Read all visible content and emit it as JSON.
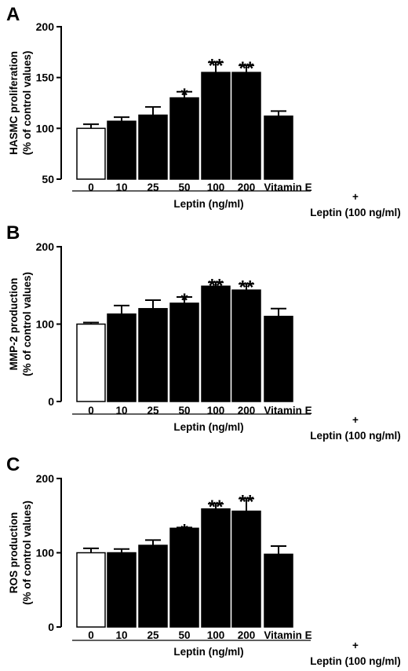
{
  "chart_data": [
    {
      "panel": "A",
      "type": "bar",
      "ylabel_line1": "HASMC proliferation",
      "ylabel_line2": "(% of control values)",
      "ylim": [
        50,
        200
      ],
      "yticks": [
        50,
        100,
        150,
        200
      ],
      "categories": [
        "0",
        "10",
        "25",
        "50",
        "100",
        "200",
        "Vitamin E"
      ],
      "values": [
        100,
        107,
        113,
        130,
        155,
        155,
        112
      ],
      "errors": [
        4,
        4,
        8,
        6,
        10,
        7,
        5
      ],
      "significance": [
        "",
        "",
        "",
        "*",
        "**",
        "**",
        ""
      ],
      "open_bar": [
        true,
        false,
        false,
        false,
        false,
        false,
        false
      ],
      "group_label": "Leptin (ng/ml)",
      "plus_label": "+",
      "combo_label": "Leptin (100 ng/ml)"
    },
    {
      "panel": "B",
      "type": "bar",
      "ylabel_line1": "MMP-2 production",
      "ylabel_line2": "(% of control values)",
      "ylim": [
        0,
        200
      ],
      "yticks": [
        0,
        100,
        200
      ],
      "categories": [
        "0",
        "10",
        "25",
        "50",
        "100",
        "200",
        "Vitamin E"
      ],
      "values": [
        100,
        113,
        120,
        127,
        149,
        144,
        110
      ],
      "errors": [
        2,
        11,
        11,
        8,
        5,
        8,
        10
      ],
      "significance": [
        "",
        "",
        "",
        "*",
        "**",
        "**",
        ""
      ],
      "open_bar": [
        true,
        false,
        false,
        false,
        false,
        false,
        false
      ],
      "group_label": "Leptin (ng/ml)",
      "plus_label": "+",
      "combo_label": "Leptin (100 ng/ml)"
    },
    {
      "panel": "C",
      "type": "bar",
      "ylabel_line1": "ROS production",
      "ylabel_line2": "(% of control values)",
      "ylim": [
        0,
        200
      ],
      "yticks": [
        0,
        100,
        200
      ],
      "categories": [
        "0",
        "10",
        "25",
        "50",
        "100",
        "200",
        "Vitamin E"
      ],
      "values": [
        100,
        100,
        110,
        133,
        159,
        156,
        98
      ],
      "errors": [
        6,
        5,
        7,
        1,
        7,
        17,
        11
      ],
      "significance": [
        "",
        "",
        "",
        "*",
        "**",
        "**",
        ""
      ],
      "open_bar": [
        true,
        false,
        false,
        false,
        false,
        false,
        false
      ],
      "group_label": "Leptin (ng/ml)",
      "plus_label": "+",
      "combo_label": "Leptin (100 ng/ml)"
    }
  ]
}
